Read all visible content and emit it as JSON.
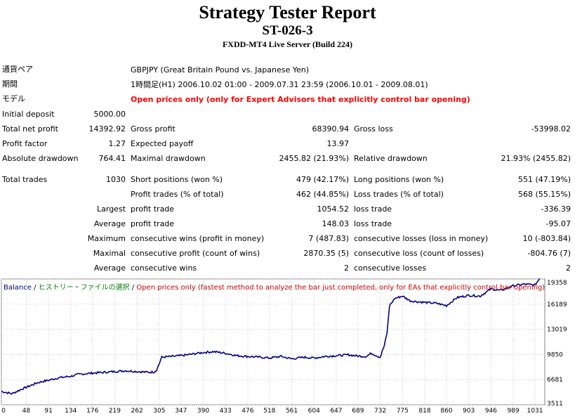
{
  "report": {
    "title": "Strategy Tester Report",
    "ea_name": "ST-026-3",
    "server": "FXDD-MT4 Live Server (Build 224)"
  },
  "info": {
    "symbol_label": "通貨ペア",
    "symbol_value": "GBPJPY (Great Britain Pound vs. Japanese Yen)",
    "period_label": "期間",
    "period_value": "1時間足(H1) 2006.10.02 01:00 - 2009.07.31 23:59 (2006.10.01 - 2009.08.01)",
    "model_label": "モデル",
    "model_value": "Open prices only (only for Expert Advisors that explicitly control bar opening)"
  },
  "stats": {
    "initial_deposit_label": "Initial deposit",
    "initial_deposit": "5000.00",
    "total_net_profit_label": "Total net profit",
    "total_net_profit": "14392.92",
    "gross_profit_label": "Gross profit",
    "gross_profit": "68390.94",
    "gross_loss_label": "Gross loss",
    "gross_loss": "-53998.02",
    "profit_factor_label": "Profit factor",
    "profit_factor": "1.27",
    "expected_payoff_label": "Expected payoff",
    "expected_payoff": "13.97",
    "absolute_drawdown_label": "Absolute drawdown",
    "absolute_drawdown": "764.41",
    "maximal_drawdown_label": "Maximal drawdown",
    "maximal_drawdown": "2455.82 (21.93%)",
    "relative_drawdown_label": "Relative drawdown",
    "relative_drawdown": "21.93% (2455.82)",
    "total_trades_label": "Total trades",
    "total_trades": "1030",
    "short_positions_label": "Short positions (won %)",
    "short_positions": "479 (42.17%)",
    "long_positions_label": "Long positions (won %)",
    "long_positions": "551 (47.19%)",
    "profit_trades_label": "Profit trades (% of total)",
    "profit_trades": "462 (44.85%)",
    "loss_trades_label": "Loss trades (% of total)",
    "loss_trades": "568 (55.15%)",
    "largest_label": "Largest",
    "largest_profit_label": "profit trade",
    "largest_profit": "1054.52",
    "largest_loss_label": "loss trade",
    "largest_loss": "-336.39",
    "average_label": "Average",
    "average_profit_label": "profit trade",
    "average_profit": "148.03",
    "average_loss_label": "loss trade",
    "average_loss": "-95.07",
    "maximum_label": "Maximum",
    "max_cons_wins_label": "consecutive wins (profit in money)",
    "max_cons_wins": "7 (487.83)",
    "max_cons_losses_label": "consecutive losses (loss in money)",
    "max_cons_losses": "10 (-803.84)",
    "maximal_label": "Maximal",
    "maximal_cons_profit_label": "consecutive profit (count of wins)",
    "maximal_cons_profit": "2870.35 (5)",
    "maximal_cons_loss_label": "consecutive loss (count of losses)",
    "maximal_cons_loss": "-804.76 (7)",
    "avg_cons_label": "Average",
    "avg_cons_wins_label": "consecutive wins",
    "avg_cons_wins": "2",
    "avg_cons_losses_label": "consecutive losses",
    "avg_cons_losses": "2"
  },
  "legend": {
    "balance": "Balance",
    "sep1": " / ",
    "history": "ヒストリー・ファイルの選択",
    "sep2": " / ",
    "model": "Open prices only (fastest method to analyze the bar just completed, only for EAs that explicitly control bar opening)"
  },
  "colors": {
    "line": "#000080",
    "grid": "#c8c8c8",
    "model_red": "#ff0000"
  },
  "chart_data": {
    "type": "line",
    "title": "",
    "xlabel": "",
    "ylabel": "",
    "x_ticks": [
      "0",
      "48",
      "91",
      "134",
      "176",
      "219",
      "262",
      "305",
      "347",
      "390",
      "433",
      "476",
      "518",
      "561",
      "604",
      "647",
      "689",
      "732",
      "775",
      "818",
      "860",
      "903",
      "946",
      "989",
      "1031"
    ],
    "y_ticks": [
      "19358",
      "16189",
      "13019",
      "9850",
      "6681",
      "3511"
    ],
    "xlim": [
      0,
      1050
    ],
    "ylim": [
      3511,
      19358
    ],
    "series": [
      {
        "x": [
          0,
          20,
          40,
          55,
          70,
          91,
          110,
          134,
          150,
          176,
          200,
          219,
          240,
          262,
          285,
          295,
          300,
          310,
          330,
          347,
          370,
          390,
          410,
          433,
          455,
          476,
          500,
          518,
          540,
          561,
          585,
          604,
          625,
          647,
          670,
          689,
          705,
          715,
          725,
          732,
          740,
          745,
          750,
          760,
          775,
          790,
          818,
          840,
          860,
          880,
          903,
          925,
          946,
          965,
          989,
          1010,
          1031,
          1040
        ],
        "y": [
          5200,
          4900,
          5500,
          5900,
          6300,
          6600,
          6900,
          7100,
          7350,
          7500,
          7600,
          7700,
          7800,
          7700,
          7600,
          7650,
          7900,
          9500,
          9600,
          9700,
          9900,
          10100,
          10200,
          10000,
          9700,
          9600,
          9500,
          9400,
          9600,
          9300,
          9500,
          9400,
          9600,
          9700,
          9800,
          9650,
          9600,
          10000,
          9700,
          9500,
          11000,
          12500,
          16000,
          16900,
          17200,
          16600,
          16400,
          16300,
          16000,
          17000,
          17300,
          17200,
          18100,
          17900,
          18500,
          18700,
          18600,
          19400
        ]
      }
    ]
  }
}
